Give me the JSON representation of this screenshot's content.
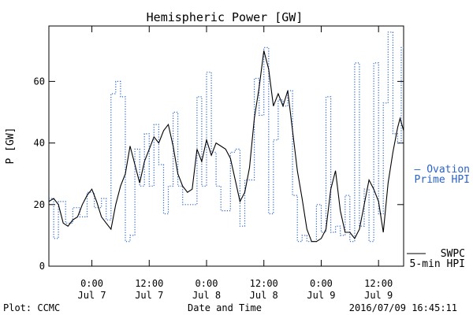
{
  "chart_data": {
    "type": "line",
    "title": "Hemispheric Power [GW]",
    "xlabel": "Date and Time",
    "ylabel": "P [GW]",
    "ylim": [
      0,
      78
    ],
    "yticks": [
      0,
      20,
      40,
      60
    ],
    "xlim": [
      "2016-07-06T15:00",
      "2016-07-09T17:15"
    ],
    "xticks": [
      {
        "t": "2016-07-07T00:00",
        "time": "0:00",
        "date": "Jul 7"
      },
      {
        "t": "2016-07-07T12:00",
        "time": "12:00",
        "date": "Jul 7"
      },
      {
        "t": "2016-07-08T00:00",
        "time": "0:00",
        "date": "Jul 8"
      },
      {
        "t": "2016-07-08T12:00",
        "time": "12:00",
        "date": "Jul 8"
      },
      {
        "t": "2016-07-09T00:00",
        "time": "0:00",
        "date": "Jul 9"
      },
      {
        "t": "2016-07-09T12:00",
        "time": "12:00",
        "date": "Jul 9"
      }
    ],
    "grid": false,
    "legend_placement": "right",
    "series": [
      {
        "name": "Ovation Prime HPI",
        "color": "#2a63c9",
        "style": "dotted-step",
        "points": [
          [
            "2016-07-06T15:00",
            22
          ],
          [
            "2016-07-06T16:00",
            9
          ],
          [
            "2016-07-06T17:00",
            21
          ],
          [
            "2016-07-06T18:30",
            14
          ],
          [
            "2016-07-06T20:00",
            19
          ],
          [
            "2016-07-06T21:30",
            16
          ],
          [
            "2016-07-06T23:00",
            24
          ],
          [
            "2016-07-07T00:30",
            19
          ],
          [
            "2016-07-07T02:00",
            22
          ],
          [
            "2016-07-07T03:00",
            15
          ],
          [
            "2016-07-07T04:00",
            56
          ],
          [
            "2016-07-07T05:00",
            60
          ],
          [
            "2016-07-07T06:00",
            55
          ],
          [
            "2016-07-07T07:00",
            8
          ],
          [
            "2016-07-07T08:00",
            10
          ],
          [
            "2016-07-07T09:00",
            38
          ],
          [
            "2016-07-07T10:00",
            26
          ],
          [
            "2016-07-07T11:00",
            43
          ],
          [
            "2016-07-07T12:00",
            26
          ],
          [
            "2016-07-07T13:00",
            46
          ],
          [
            "2016-07-07T14:00",
            33
          ],
          [
            "2016-07-07T15:00",
            17
          ],
          [
            "2016-07-07T16:00",
            26
          ],
          [
            "2016-07-07T17:00",
            50
          ],
          [
            "2016-07-07T18:00",
            26
          ],
          [
            "2016-07-07T19:00",
            20
          ],
          [
            "2016-07-07T20:00",
            20
          ],
          [
            "2016-07-07T21:00",
            20
          ],
          [
            "2016-07-07T22:00",
            55
          ],
          [
            "2016-07-07T23:00",
            26
          ],
          [
            "2016-07-08T00:00",
            63
          ],
          [
            "2016-07-08T01:00",
            37
          ],
          [
            "2016-07-08T02:00",
            26
          ],
          [
            "2016-07-08T03:00",
            18
          ],
          [
            "2016-07-08T04:00",
            18
          ],
          [
            "2016-07-08T05:00",
            37
          ],
          [
            "2016-07-08T06:00",
            38
          ],
          [
            "2016-07-08T07:00",
            13
          ],
          [
            "2016-07-08T08:00",
            28
          ],
          [
            "2016-07-08T09:00",
            28
          ],
          [
            "2016-07-08T10:00",
            61
          ],
          [
            "2016-07-08T11:00",
            49
          ],
          [
            "2016-07-08T12:00",
            71
          ],
          [
            "2016-07-08T13:00",
            17
          ],
          [
            "2016-07-08T14:00",
            41
          ],
          [
            "2016-07-08T15:00",
            54
          ],
          [
            "2016-07-08T16:00",
            52
          ],
          [
            "2016-07-08T17:00",
            57
          ],
          [
            "2016-07-08T18:00",
            23
          ],
          [
            "2016-07-08T19:00",
            8
          ],
          [
            "2016-07-08T20:00",
            10
          ],
          [
            "2016-07-08T21:00",
            8
          ],
          [
            "2016-07-08T22:00",
            8
          ],
          [
            "2016-07-08T23:00",
            20
          ],
          [
            "2016-07-09T00:00",
            11
          ],
          [
            "2016-07-09T01:00",
            55
          ],
          [
            "2016-07-09T02:00",
            11
          ],
          [
            "2016-07-09T03:00",
            13
          ],
          [
            "2016-07-09T04:00",
            10
          ],
          [
            "2016-07-09T05:00",
            23
          ],
          [
            "2016-07-09T06:00",
            8
          ],
          [
            "2016-07-09T07:00",
            66
          ],
          [
            "2016-07-09T08:00",
            13
          ],
          [
            "2016-07-09T09:00",
            25
          ],
          [
            "2016-07-09T10:00",
            8
          ],
          [
            "2016-07-09T11:00",
            66
          ],
          [
            "2016-07-09T12:00",
            17
          ],
          [
            "2016-07-09T13:00",
            53
          ],
          [
            "2016-07-09T14:00",
            76
          ],
          [
            "2016-07-09T15:00",
            43
          ],
          [
            "2016-07-09T16:00",
            40
          ],
          [
            "2016-07-09T16:45",
            71
          ],
          [
            "2016-07-09T17:15",
            71
          ]
        ]
      },
      {
        "name": "SWPC 5-min HPI",
        "color": "#000000",
        "style": "solid",
        "points": [
          [
            "2016-07-06T15:00",
            21
          ],
          [
            "2016-07-06T16:00",
            22
          ],
          [
            "2016-07-06T17:00",
            20
          ],
          [
            "2016-07-06T18:00",
            14
          ],
          [
            "2016-07-06T19:00",
            13
          ],
          [
            "2016-07-06T20:00",
            15
          ],
          [
            "2016-07-06T21:00",
            16
          ],
          [
            "2016-07-06T22:00",
            20
          ],
          [
            "2016-07-06T23:00",
            23
          ],
          [
            "2016-07-07T00:00",
            25
          ],
          [
            "2016-07-07T01:00",
            21
          ],
          [
            "2016-07-07T02:00",
            16
          ],
          [
            "2016-07-07T03:00",
            14
          ],
          [
            "2016-07-07T04:00",
            12
          ],
          [
            "2016-07-07T05:00",
            20
          ],
          [
            "2016-07-07T06:00",
            26
          ],
          [
            "2016-07-07T07:00",
            30
          ],
          [
            "2016-07-07T08:00",
            39
          ],
          [
            "2016-07-07T09:00",
            33
          ],
          [
            "2016-07-07T10:00",
            27
          ],
          [
            "2016-07-07T11:00",
            34
          ],
          [
            "2016-07-07T12:00",
            38
          ],
          [
            "2016-07-07T13:00",
            42
          ],
          [
            "2016-07-07T14:00",
            40
          ],
          [
            "2016-07-07T15:00",
            44
          ],
          [
            "2016-07-07T16:00",
            46
          ],
          [
            "2016-07-07T17:00",
            39
          ],
          [
            "2016-07-07T18:00",
            30
          ],
          [
            "2016-07-07T19:00",
            26
          ],
          [
            "2016-07-07T20:00",
            24
          ],
          [
            "2016-07-07T21:00",
            25
          ],
          [
            "2016-07-07T22:00",
            38
          ],
          [
            "2016-07-07T23:00",
            34
          ],
          [
            "2016-07-08T00:00",
            41
          ],
          [
            "2016-07-08T01:00",
            36
          ],
          [
            "2016-07-08T02:00",
            40
          ],
          [
            "2016-07-08T03:00",
            39
          ],
          [
            "2016-07-08T04:00",
            38
          ],
          [
            "2016-07-08T05:00",
            35
          ],
          [
            "2016-07-08T06:00",
            28
          ],
          [
            "2016-07-08T07:00",
            21
          ],
          [
            "2016-07-08T08:00",
            24
          ],
          [
            "2016-07-08T09:00",
            32
          ],
          [
            "2016-07-08T10:00",
            48
          ],
          [
            "2016-07-08T11:00",
            58
          ],
          [
            "2016-07-08T12:00",
            70
          ],
          [
            "2016-07-08T13:00",
            64
          ],
          [
            "2016-07-08T14:00",
            52
          ],
          [
            "2016-07-08T15:00",
            56
          ],
          [
            "2016-07-08T16:00",
            52
          ],
          [
            "2016-07-08T17:00",
            57
          ],
          [
            "2016-07-08T18:00",
            44
          ],
          [
            "2016-07-08T19:00",
            31
          ],
          [
            "2016-07-08T20:00",
            22
          ],
          [
            "2016-07-08T21:00",
            12
          ],
          [
            "2016-07-08T22:00",
            8
          ],
          [
            "2016-07-08T23:00",
            8
          ],
          [
            "2016-07-09T00:00",
            9
          ],
          [
            "2016-07-09T01:00",
            12
          ],
          [
            "2016-07-09T02:00",
            25
          ],
          [
            "2016-07-09T03:00",
            31
          ],
          [
            "2016-07-09T04:00",
            18
          ],
          [
            "2016-07-09T05:00",
            11
          ],
          [
            "2016-07-09T06:00",
            11
          ],
          [
            "2016-07-09T07:00",
            9
          ],
          [
            "2016-07-09T08:00",
            12
          ],
          [
            "2016-07-09T09:00",
            20
          ],
          [
            "2016-07-09T10:00",
            28
          ],
          [
            "2016-07-09T11:00",
            25
          ],
          [
            "2016-07-09T12:00",
            21
          ],
          [
            "2016-07-09T13:00",
            11
          ],
          [
            "2016-07-09T14:00",
            27
          ],
          [
            "2016-07-09T15:00",
            37
          ],
          [
            "2016-07-09T16:00",
            45
          ],
          [
            "2016-07-09T16:30",
            48
          ],
          [
            "2016-07-09T17:15",
            44
          ]
        ]
      }
    ]
  },
  "legend": {
    "ovation_line1": "— Ovation",
    "ovation_line2": "Prime HPI",
    "swpc_line1": "SWPC",
    "swpc_line2": "5-min HPI"
  },
  "footer": {
    "left": "Plot: CCMC",
    "center": "Date and Time",
    "right": "2016/07/09 16:45:11"
  },
  "colors": {
    "ovation": "#2a63c9",
    "swpc": "#000000",
    "axis": "#000000"
  }
}
